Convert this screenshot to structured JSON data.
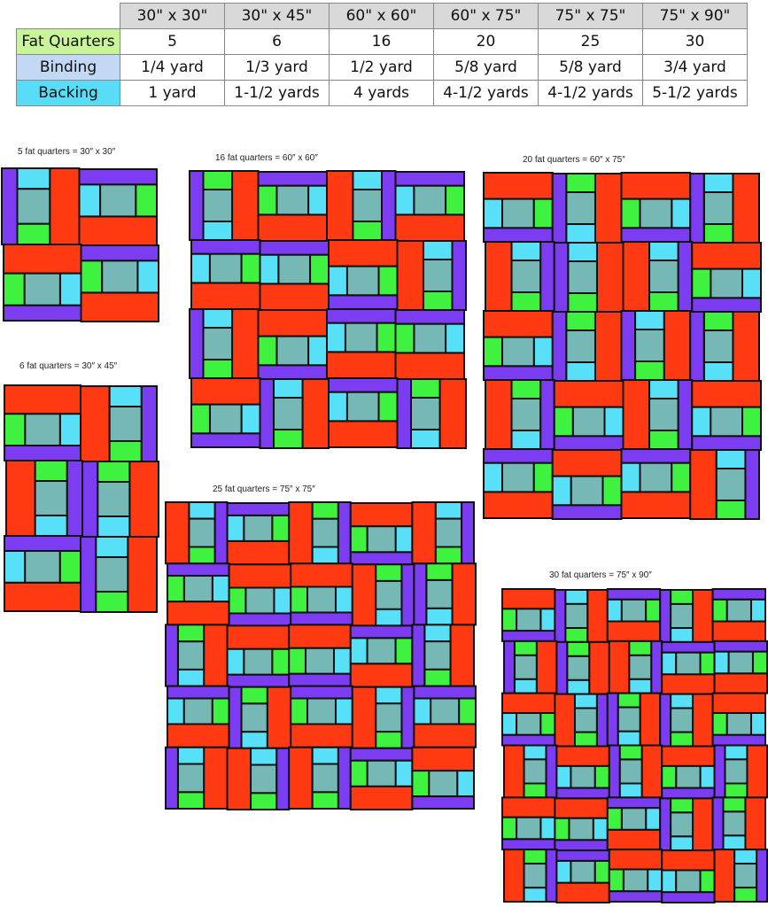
{
  "table": {
    "sizes": [
      "30\" x 30\"",
      "30\" x 45\"",
      "60\" x 60\"",
      "60\" x 75\"",
      "75\" x 75\"",
      "75\" x 90\""
    ],
    "rows": [
      {
        "label": "Fat Quarters",
        "values": [
          "5",
          "6",
          "16",
          "20",
          "25",
          "30"
        ]
      },
      {
        "label": "Binding",
        "values": [
          "1/4 yard",
          "1/3 yard",
          "1/2 yard",
          "5/8 yard",
          "5/8 yard",
          "3/4 yard"
        ]
      },
      {
        "label": "Backing",
        "values": [
          "1 yard",
          "1-1/2 yards",
          "4 yards",
          "4-1/2 yards",
          "4-1/2 yards",
          "5-1/2 yards"
        ]
      }
    ]
  },
  "colors": {
    "red": "#ff3a12",
    "cyan": "#58e0f9",
    "teal": "#76b8b6",
    "green": "#3ff23f",
    "purple": "#7b3cf2"
  },
  "quilts": [
    {
      "label": "5 fat quarters = 30″ x 30″",
      "cols": 2,
      "rows": 2
    },
    {
      "label": "6 fat quarters = 30″ x 45″",
      "cols": 2,
      "rows": 3
    },
    {
      "label": "16 fat quarters = 60″ x 60″",
      "cols": 4,
      "rows": 4
    },
    {
      "label": "20 fat quarters = 60″ x 75″",
      "cols": 4,
      "rows": 5
    },
    {
      "label": "25 fat quarters = 75″ x 75″",
      "cols": 5,
      "rows": 5
    },
    {
      "label": "30 fat quarters = 75″ x 90″",
      "cols": 5,
      "rows": 6
    }
  ]
}
